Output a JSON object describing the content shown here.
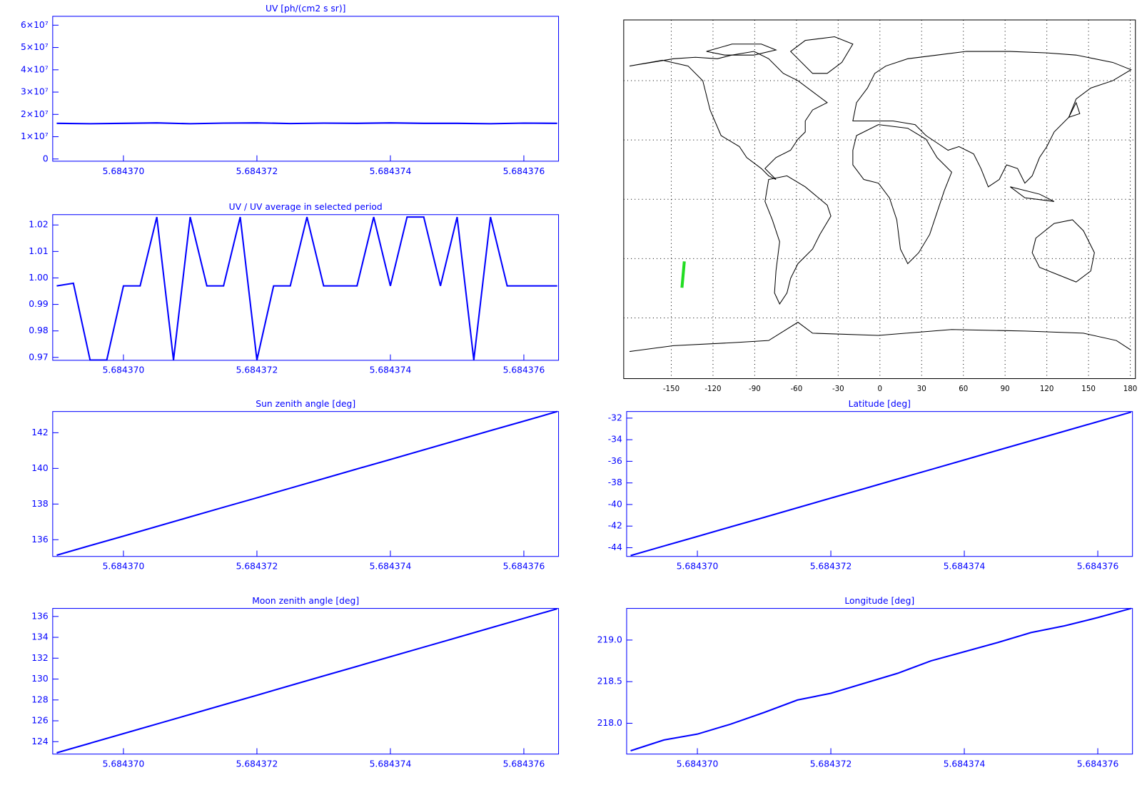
{
  "chart_data": [
    {
      "type": "line",
      "title": "UV [ph/(cm2 s sr)]",
      "color": "#0000ff",
      "x": [
        5.684369,
        5.6843695,
        5.68437,
        5.6843705,
        5.684371,
        5.6843715,
        5.684372,
        5.6843725,
        5.684373,
        5.6843735,
        5.684374,
        5.6843745,
        5.684375,
        5.6843755,
        5.684376,
        5.6843765
      ],
      "values": [
        16000000,
        15800000,
        16000000,
        16200000,
        15800000,
        16100000,
        16200000,
        15900000,
        16100000,
        16000000,
        16200000,
        16000000,
        16000000,
        15800000,
        16100000,
        16000000
      ],
      "xlim": [
        5.68436894,
        5.68437652
      ],
      "xticks": [
        {
          "value": 5.68437,
          "label": "5.684370"
        },
        5.684372,
        5.684374,
        5.684376
      ],
      "ylim": [
        -1000000,
        64000000
      ],
      "yticks": [
        0,
        {
          "value": 10000000,
          "label": "1×10⁷"
        },
        {
          "value": 20000000,
          "label": "2×10⁷"
        },
        {
          "value": 30000000,
          "label": "3×10⁷"
        },
        {
          "value": 40000000,
          "label": "4×10⁷"
        },
        {
          "value": 50000000,
          "label": "5×10⁷"
        },
        {
          "value": 60000000,
          "label": "6×10⁷"
        }
      ]
    },
    {
      "type": "line",
      "title": "UV / UV average in selected period",
      "color": "#0000ff",
      "x": [
        5.684369,
        5.68436925,
        5.6843695,
        5.68436975,
        5.68437,
        5.68437025,
        5.6843705,
        5.68437075,
        5.684371,
        5.68437125,
        5.6843715,
        5.68437175,
        5.684372,
        5.68437225,
        5.6843725,
        5.68437275,
        5.684373,
        5.68437325,
        5.6843735,
        5.68437375,
        5.684374,
        5.68437425,
        5.6843745,
        5.68437475,
        5.684375,
        5.68437525,
        5.6843755,
        5.68437575,
        5.684376,
        5.68437625,
        5.6843765
      ],
      "values": [
        0.997,
        0.998,
        0.969,
        0.969,
        0.997,
        0.997,
        1.023,
        0.969,
        1.023,
        0.997,
        0.997,
        1.023,
        0.969,
        0.997,
        0.997,
        1.023,
        0.997,
        0.997,
        0.997,
        1.023,
        0.997,
        1.023,
        1.023,
        0.997,
        1.023,
        0.969,
        1.023,
        0.997,
        0.997,
        0.997,
        0.997
      ],
      "xlim": [
        5.68436894,
        5.68437652
      ],
      "xticks": [
        {
          "value": 5.68437,
          "label": "5.684370"
        },
        5.684372,
        5.684374,
        5.684376
      ],
      "ylim": [
        0.9689,
        1.0239
      ],
      "yticks": [
        0.97,
        0.98,
        0.99,
        {
          "value": 1,
          "label": "1.00"
        },
        1.01,
        1.02
      ]
    },
    {
      "type": "line",
      "title": "Sun zenith angle [deg]",
      "color": "#0000ff",
      "x": [
        5.684369,
        5.6843695,
        5.68437,
        5.6843705,
        5.684371,
        5.6843715,
        5.684372,
        5.6843725,
        5.684373,
        5.6843735,
        5.684374,
        5.6843745,
        5.684375,
        5.6843755,
        5.684376,
        5.6843765
      ],
      "values": [
        135.13,
        135.67,
        136.2,
        136.74,
        137.28,
        137.82,
        138.35,
        138.89,
        139.43,
        139.97,
        140.5,
        141.04,
        141.58,
        142.12,
        142.65,
        143.19
      ],
      "xlim": [
        5.68436894,
        5.68437652
      ],
      "xticks": [
        {
          "value": 5.68437,
          "label": "5.684370"
        },
        5.684372,
        5.684374,
        5.684376
      ],
      "ylim": [
        135.06,
        143.19
      ],
      "yticks": [
        136,
        138,
        140,
        142
      ]
    },
    {
      "type": "line",
      "title": "Latitude [deg]",
      "color": "#0000ff",
      "x": [
        5.684369,
        5.6843695,
        5.68437,
        5.6843705,
        5.684371,
        5.6843715,
        5.684372,
        5.6843725,
        5.684373,
        5.6843735,
        5.684374,
        5.6843745,
        5.684375,
        5.6843755,
        5.684376,
        5.6843765
      ],
      "values": [
        -44.73,
        -43.84,
        -42.96,
        -42.07,
        -41.19,
        -40.3,
        -39.41,
        -38.53,
        -37.64,
        -36.76,
        -35.87,
        -34.98,
        -34.1,
        -33.21,
        -32.33,
        -31.44
      ],
      "xlim": [
        5.68436894,
        5.68437652
      ],
      "xticks": [
        {
          "value": 5.68437,
          "label": "5.684370"
        },
        5.684372,
        5.684374,
        5.684376
      ],
      "ylim": [
        -44.81,
        -31.39
      ],
      "yticks": [
        -44,
        -42,
        -40,
        -38,
        -36,
        -34,
        -32
      ]
    },
    {
      "type": "line",
      "title": "Moon zenith angle [deg]",
      "color": "#0000ff",
      "x": [
        5.684369,
        5.6843695,
        5.68437,
        5.6843705,
        5.684371,
        5.6843715,
        5.684372,
        5.6843725,
        5.684373,
        5.6843735,
        5.684374,
        5.6843745,
        5.684375,
        5.6843755,
        5.684376,
        5.6843765
      ],
      "values": [
        122.93,
        123.85,
        124.77,
        125.69,
        126.61,
        127.53,
        128.45,
        129.38,
        130.3,
        131.22,
        132.14,
        133.06,
        133.98,
        134.9,
        135.82,
        136.74
      ],
      "xlim": [
        5.68436894,
        5.68437652
      ],
      "xticks": [
        {
          "value": 5.68437,
          "label": "5.684370"
        },
        5.684372,
        5.684374,
        5.684376
      ],
      "ylim": [
        122.81,
        136.77
      ],
      "yticks": [
        124,
        126,
        128,
        130,
        132,
        134,
        136
      ]
    },
    {
      "type": "line",
      "title": "Longitude [deg]",
      "color": "#0000ff",
      "x": [
        5.684369,
        5.6843695,
        5.68437,
        5.6843705,
        5.684371,
        5.6843715,
        5.684372,
        5.6843725,
        5.684373,
        5.6843735,
        5.684374,
        5.6843745,
        5.684375,
        5.6843755,
        5.684376,
        5.6843765
      ],
      "values": [
        217.67,
        217.8,
        217.87,
        217.99,
        218.13,
        218.28,
        218.36,
        218.48,
        218.6,
        218.75,
        218.86,
        218.97,
        219.09,
        219.17,
        219.27,
        219.38
      ],
      "xlim": [
        5.68436894,
        5.68437652
      ],
      "xticks": [
        {
          "value": 5.68437,
          "label": "5.684370"
        },
        5.684372,
        5.684374,
        5.684376
      ],
      "ylim": [
        217.63,
        219.38
      ],
      "yticks": [
        {
          "value": 218,
          "label": "218.0"
        },
        218.5,
        {
          "value": 219,
          "label": "219.0"
        }
      ]
    },
    {
      "type": "map",
      "color": "#22dd22",
      "grid": true,
      "x": [
        -142.33,
        -140.62
      ],
      "values": [
        -44.73,
        -31.44
      ],
      "xlim": [
        -184.2,
        183.7
      ],
      "xticks": [
        -150,
        -120,
        -90,
        -60,
        -30,
        0,
        30,
        60,
        90,
        120,
        150,
        180
      ],
      "ylim": [
        -90.7,
        90.7
      ],
      "yticks": [
        -60,
        -30,
        0,
        30,
        60
      ]
    }
  ]
}
